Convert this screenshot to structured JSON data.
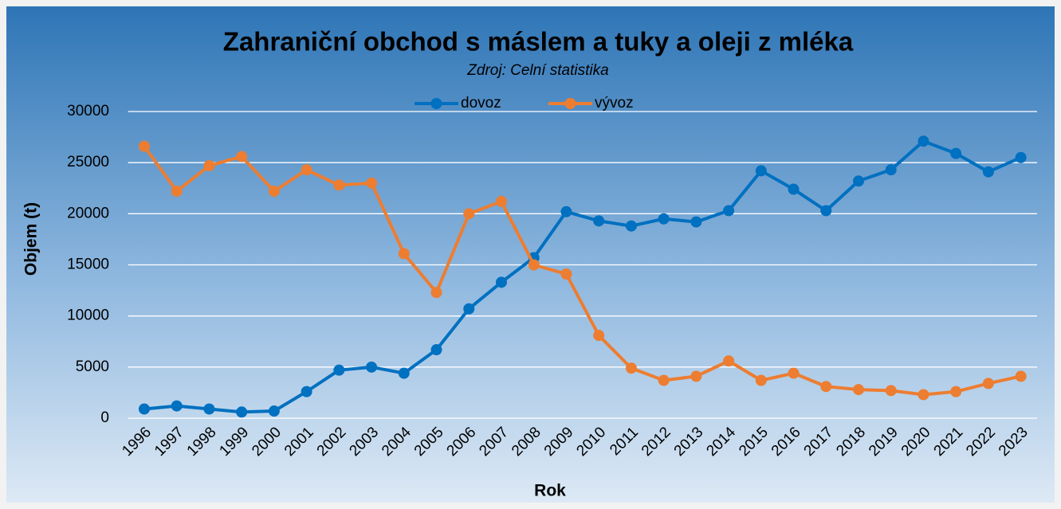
{
  "chart_data": {
    "type": "line",
    "title": "Zahraniční obchod s máslem a tuky a oleji z mléka",
    "subtitle": "Zdroj: Celní statistika",
    "x_label": "Rok",
    "y_label": "Objem (t)",
    "categories": [
      "1996",
      "1997",
      "1998",
      "1999",
      "2000",
      "2001",
      "2002",
      "2003",
      "2004",
      "2005",
      "2006",
      "2007",
      "2008",
      "2009",
      "2010",
      "2011",
      "2012",
      "2013",
      "2014",
      "2015",
      "2016",
      "2017",
      "2018",
      "2019",
      "2020",
      "2021",
      "2022",
      "2023"
    ],
    "series": [
      {
        "name": "dovoz",
        "color": "#0070c0",
        "values": [
          900,
          1200,
          900,
          600,
          700,
          2600,
          4700,
          5000,
          4400,
          6700,
          10700,
          13300,
          15700,
          20200,
          19300,
          18800,
          19500,
          19200,
          20300,
          24200,
          22400,
          20300,
          23200,
          24300,
          27100,
          25900,
          24100,
          25500
        ]
      },
      {
        "name": "vývoz",
        "color": "#ed7d31",
        "values": [
          26600,
          22200,
          24700,
          25600,
          22200,
          24300,
          22800,
          23000,
          16100,
          12300,
          20000,
          21200,
          15000,
          14100,
          8100,
          4900,
          3700,
          4100,
          5600,
          3700,
          4400,
          3100,
          2800,
          2700,
          2300,
          2600,
          3400,
          4100
        ]
      }
    ],
    "ylim": [
      0,
      30000
    ],
    "yticks": [
      0,
      5000,
      10000,
      15000,
      20000,
      25000,
      30000
    ],
    "grid": true,
    "legend": "top"
  }
}
